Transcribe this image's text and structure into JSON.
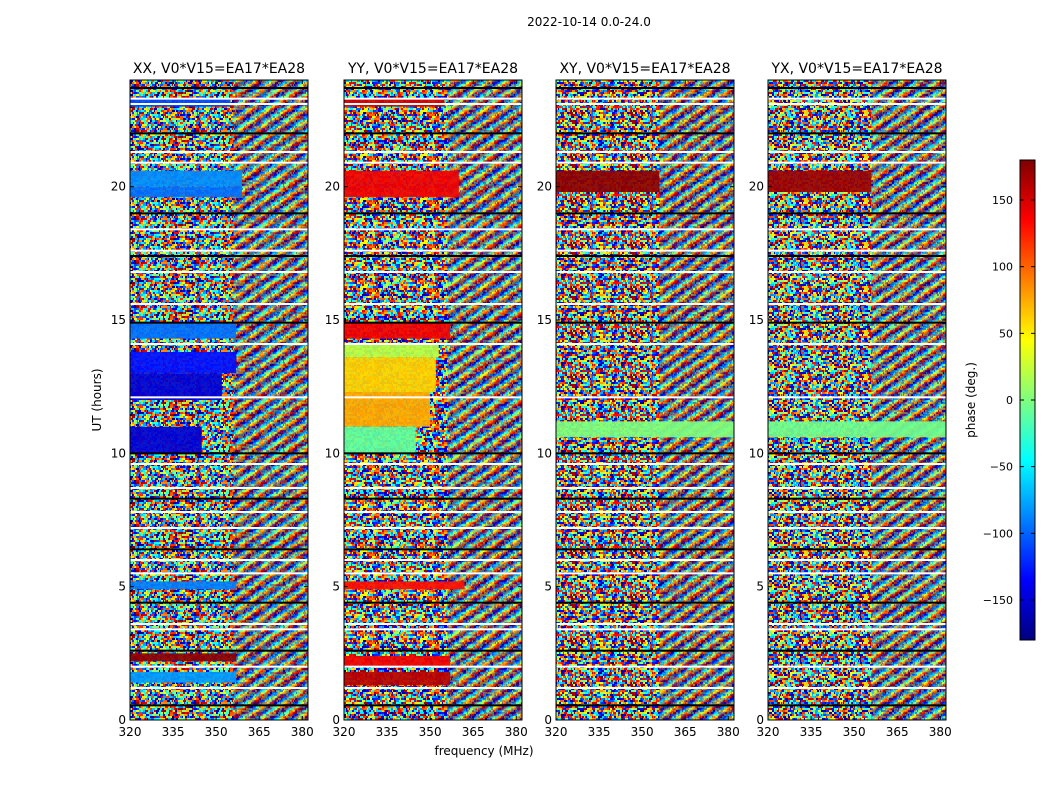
{
  "figure_title": "2022-10-14 0.0-24.0",
  "chart_data": {
    "type": "heatmap",
    "title": "2022-10-14 0.0-24.0",
    "xlabel": "frequency (MHz)",
    "ylabel": "UT (hours)",
    "xlim": [
      320,
      382
    ],
    "ylim": [
      0,
      24
    ],
    "xticks": [
      320,
      335,
      350,
      365,
      380
    ],
    "yticks": [
      0,
      5,
      10,
      15,
      20
    ],
    "colorbar": {
      "label": "phase (deg.)",
      "range": [
        -180,
        180
      ],
      "ticks": [
        150,
        100,
        50,
        0,
        -50,
        -100,
        -150
      ],
      "tick_labels": [
        "150",
        "100",
        "50",
        "0",
        "−50",
        "−100",
        "−150"
      ],
      "colormap": "jet",
      "colors": [
        "#00007f",
        "#0000ff",
        "#007fff",
        "#00ffff",
        "#7fff7f",
        "#ffff00",
        "#ff7f00",
        "#ff0000",
        "#7f0000"
      ]
    },
    "panels": [
      {
        "title": "XX, V0*V15=EA17*EA28",
        "bands": [
          {
            "y": [
              20.0,
              20.6
            ],
            "x": [
              320,
              359
            ],
            "phase": -85
          },
          {
            "y": [
              19.6,
              20.0
            ],
            "x": [
              320,
              359
            ],
            "phase": -95
          },
          {
            "y": [
              14.3,
              14.9
            ],
            "x": [
              320,
              357
            ],
            "phase": -95
          },
          {
            "y": [
              13.0,
              13.8
            ],
            "x": [
              320,
              357
            ],
            "phase": -130
          },
          {
            "y": [
              12.0,
              13.0
            ],
            "x": [
              320,
              352
            ],
            "phase": -150
          },
          {
            "y": [
              10.0,
              11.0
            ],
            "x": [
              320,
              345
            ],
            "phase": -150
          },
          {
            "y": [
              4.9,
              5.2
            ],
            "x": [
              320,
              357
            ],
            "phase": -90
          },
          {
            "y": [
              2.2,
              2.5
            ],
            "x": [
              320,
              357
            ],
            "phase": 175
          },
          {
            "y": [
              1.4,
              1.8
            ],
            "x": [
              320,
              357
            ],
            "phase": -80
          },
          {
            "y": [
              23.0,
              23.3
            ],
            "x": [
              320,
              355
            ],
            "phase": -110
          }
        ]
      },
      {
        "title": "YY, V0*V15=EA17*EA28",
        "bands": [
          {
            "y": [
              19.6,
              20.6
            ],
            "x": [
              320,
              360
            ],
            "phase": 140
          },
          {
            "y": [
              14.3,
              14.9
            ],
            "x": [
              320,
              357
            ],
            "phase": 140
          },
          {
            "y": [
              13.6,
              14.1
            ],
            "x": [
              320,
              353
            ],
            "phase": 20
          },
          {
            "y": [
              12.3,
              13.6
            ],
            "x": [
              320,
              352
            ],
            "phase": 60
          },
          {
            "y": [
              11.0,
              12.3
            ],
            "x": [
              320,
              350
            ],
            "phase": 75
          },
          {
            "y": [
              10.0,
              11.0
            ],
            "x": [
              320,
              345
            ],
            "phase": -10
          },
          {
            "y": [
              4.9,
              5.2
            ],
            "x": [
              320,
              362
            ],
            "phase": 130
          },
          {
            "y": [
              2.0,
              2.4
            ],
            "x": [
              320,
              357
            ],
            "phase": 140
          },
          {
            "y": [
              1.3,
              1.8
            ],
            "x": [
              320,
              357
            ],
            "phase": 160
          },
          {
            "y": [
              23.0,
              23.3
            ],
            "x": [
              320,
              355
            ],
            "phase": 150
          }
        ]
      },
      {
        "title": "XY, V0*V15=EA17*EA28",
        "bands": [
          {
            "y": [
              19.8,
              20.6
            ],
            "x": [
              320,
              356
            ],
            "phase": 175
          },
          {
            "y": [
              10.6,
              11.2
            ],
            "x": [
              320,
              382
            ],
            "phase": 0
          }
        ]
      },
      {
        "title": "YX, V0*V15=EA17*EA28",
        "bands": [
          {
            "y": [
              19.8,
              20.6
            ],
            "x": [
              320,
              356
            ],
            "phase": 170
          },
          {
            "y": [
              10.6,
              11.2
            ],
            "x": [
              320,
              382
            ],
            "phase": -5
          }
        ]
      }
    ],
    "gaps_ut": [
      0.55,
      1.2,
      2.0,
      2.6,
      3.4,
      3.6,
      4.4,
      5.5,
      6.0,
      6.4,
      7.2,
      7.8,
      8.3,
      8.7,
      9.6,
      10.0,
      12.1,
      14.1,
      14.9,
      15.6,
      16.8,
      17.4,
      17.6,
      18.4,
      19.0,
      20.9,
      21.3,
      22.0,
      23.1,
      23.3,
      23.7
    ]
  }
}
